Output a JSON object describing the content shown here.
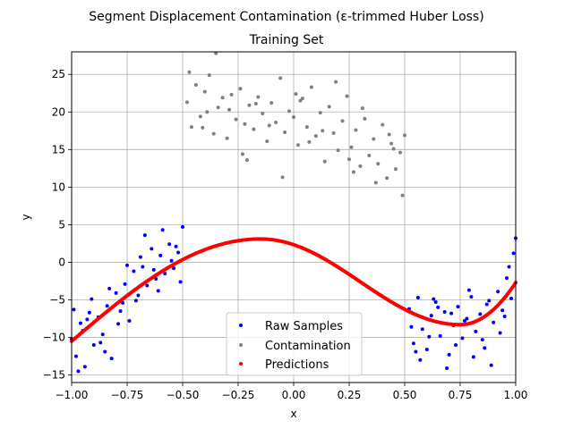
{
  "chart_data": {
    "type": "scatter",
    "title": "Segment Displacement Contamination (ε-trimmed Huber Loss)",
    "subtitle": "Training Set",
    "xlabel": "x",
    "ylabel": "y",
    "xlim": [
      -1.0,
      1.0
    ],
    "ylim": [
      -16,
      28
    ],
    "grid": true,
    "x_ticks": [
      -1.0,
      -0.75,
      -0.5,
      -0.25,
      0.0,
      0.25,
      0.5,
      0.75,
      1.0
    ],
    "x_tick_labels": [
      "−1.00",
      "−0.75",
      "−0.50",
      "−0.25",
      "0.00",
      "0.25",
      "0.50",
      "0.75",
      "1.00"
    ],
    "y_ticks": [
      -15,
      -10,
      -5,
      0,
      5,
      10,
      15,
      20,
      25
    ],
    "y_tick_labels": [
      "−15",
      "−10",
      "−5",
      "0",
      "5",
      "10",
      "15",
      "20",
      "25"
    ],
    "legend_position": "lower-center",
    "series": [
      {
        "name": "Raw Samples",
        "color": "#0000ff",
        "x": [
          -1.0,
          -0.98,
          -0.96,
          -0.94,
          -0.92,
          -0.9,
          -0.88,
          -0.86,
          -0.84,
          -0.82,
          -0.8,
          -0.78,
          -0.76,
          -0.74,
          -0.72,
          -0.7,
          -0.68,
          -0.66,
          -0.64,
          -0.62,
          -0.6,
          -0.58,
          -0.56,
          -0.54,
          -0.52,
          -0.5,
          -0.99,
          -0.95,
          -0.91,
          -0.87,
          -0.83,
          -0.79,
          -0.75,
          -0.71,
          -0.67,
          -0.63,
          -0.59,
          -0.55,
          -0.51,
          -0.97,
          -0.93,
          -0.85,
          -0.77,
          -0.69,
          -0.61,
          -0.53,
          0.52,
          0.54,
          0.56,
          0.58,
          0.6,
          0.62,
          0.64,
          0.66,
          0.68,
          0.7,
          0.72,
          0.74,
          0.76,
          0.78,
          0.8,
          0.82,
          0.84,
          0.86,
          0.88,
          0.9,
          0.92,
          0.94,
          0.96,
          0.98,
          1.0,
          0.53,
          0.57,
          0.61,
          0.65,
          0.69,
          0.73,
          0.77,
          0.81,
          0.85,
          0.89,
          0.93,
          0.97,
          0.99,
          0.55,
          0.63,
          0.71,
          0.79,
          0.87,
          0.95
        ],
        "y": [
          -10.2,
          -12.5,
          -8.1,
          -13.9,
          -6.7,
          -11.0,
          -7.3,
          -9.6,
          -5.8,
          -12.8,
          -4.1,
          -6.5,
          -2.9,
          -7.8,
          -1.2,
          -4.4,
          -0.6,
          -3.1,
          1.8,
          -2.2,
          0.9,
          -1.5,
          2.4,
          -0.8,
          1.3,
          4.7,
          -6.3,
          -9.1,
          -4.9,
          -10.7,
          -3.5,
          -8.2,
          -0.4,
          -5.1,
          3.6,
          -1.0,
          4.3,
          0.2,
          -2.6,
          -14.5,
          -7.6,
          -11.9,
          -5.4,
          0.7,
          -3.8,
          2.1,
          -6.2,
          -10.8,
          -4.7,
          -8.9,
          -11.6,
          -7.1,
          -5.3,
          -9.8,
          -6.6,
          -12.3,
          -8.4,
          -5.9,
          -10.1,
          -7.5,
          -4.6,
          -9.2,
          -6.9,
          -11.4,
          -5.1,
          -8.0,
          -3.9,
          -6.4,
          -2.1,
          -4.8,
          3.2,
          -8.6,
          -13.0,
          -9.9,
          -6.0,
          -14.1,
          -11.0,
          -7.8,
          -12.6,
          -10.3,
          -13.7,
          -9.4,
          -0.6,
          1.2,
          -11.9,
          -4.9,
          -6.8,
          -3.7,
          -5.6,
          -7.2
        ]
      },
      {
        "name": "Contamination",
        "color": "#808080",
        "x": [
          -0.48,
          -0.46,
          -0.44,
          -0.42,
          -0.4,
          -0.38,
          -0.36,
          -0.34,
          -0.32,
          -0.3,
          -0.28,
          -0.26,
          -0.24,
          -0.22,
          -0.2,
          -0.18,
          -0.16,
          -0.14,
          -0.12,
          -0.1,
          -0.08,
          -0.06,
          -0.04,
          -0.02,
          0.0,
          0.02,
          0.04,
          0.06,
          0.08,
          0.1,
          0.12,
          0.14,
          0.16,
          0.18,
          0.2,
          0.22,
          0.24,
          0.26,
          0.28,
          0.3,
          0.32,
          0.34,
          0.36,
          0.38,
          0.4,
          0.42,
          0.44,
          0.46,
          0.48,
          0.5,
          -0.47,
          -0.41,
          -0.35,
          -0.29,
          -0.23,
          -0.17,
          -0.11,
          -0.05,
          0.01,
          0.07,
          0.13,
          0.19,
          0.25,
          0.31,
          0.37,
          0.43,
          0.49,
          -0.39,
          -0.21,
          0.03,
          0.27,
          0.45
        ],
        "y": [
          21.3,
          18.0,
          23.6,
          19.4,
          22.7,
          24.9,
          17.1,
          20.6,
          21.9,
          16.5,
          22.3,
          19.0,
          23.1,
          18.4,
          20.9,
          17.7,
          22.0,
          19.8,
          16.1,
          21.2,
          18.6,
          24.5,
          17.3,
          20.1,
          19.3,
          15.6,
          21.8,
          18.0,
          23.3,
          16.8,
          19.9,
          13.4,
          20.7,
          17.2,
          14.9,
          18.8,
          22.1,
          15.3,
          17.6,
          12.8,
          19.1,
          14.2,
          16.4,
          13.1,
          18.3,
          11.2,
          15.8,
          12.4,
          14.6,
          16.9,
          25.3,
          17.9,
          27.8,
          20.3,
          14.4,
          21.1,
          18.2,
          11.3,
          22.4,
          16.0,
          17.5,
          24.0,
          13.7,
          20.5,
          10.6,
          17.0,
          8.9,
          20.0,
          13.6,
          21.5,
          12.0,
          15.1
        ]
      },
      {
        "name": "Predictions",
        "color": "#ff0000",
        "function": "0.5 - 12.5*(x^3 - x) + 2.3*x^2 * (smooth sinusoidal fit)"
      }
    ]
  }
}
